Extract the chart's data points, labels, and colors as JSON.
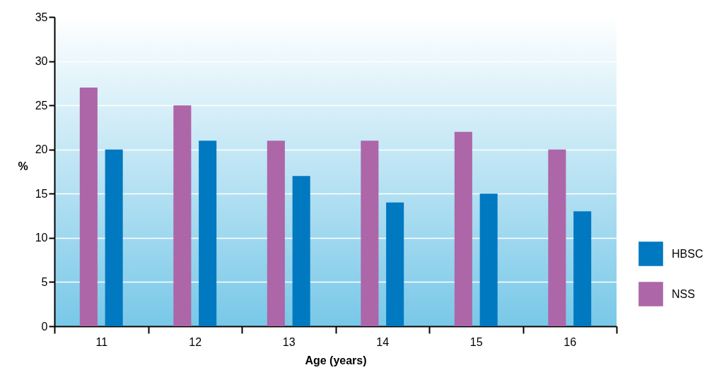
{
  "chart_data": {
    "type": "bar",
    "xlabel": "Age (years)",
    "ylabel": "%",
    "categories": [
      "11",
      "12",
      "13",
      "14",
      "15",
      "16"
    ],
    "series": [
      {
        "name": "NSS",
        "color": "#ad66a8",
        "values": [
          27,
          25,
          21,
          21,
          22,
          20
        ]
      },
      {
        "name": "HBSC",
        "color": "#0079c1",
        "values": [
          20,
          21,
          17,
          14,
          15,
          13
        ]
      }
    ],
    "ylim": [
      0,
      35
    ],
    "yticks": [
      0,
      5,
      10,
      15,
      20,
      25,
      30,
      35
    ],
    "grid": "y",
    "legend": "bottom right"
  }
}
